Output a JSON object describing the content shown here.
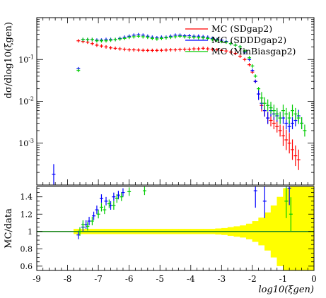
{
  "chart_data": [
    {
      "type": "scatter",
      "panel": "main",
      "ylabel": "dσ/dlog10(ξgen)",
      "yscale": "log",
      "ylim": [
        0.0001,
        1
      ],
      "xlim": [
        -9,
        0
      ],
      "yticks": [
        {
          "value": 0.1,
          "label": "10^-1"
        },
        {
          "value": 0.01,
          "label": "10^-2"
        },
        {
          "value": 0.001,
          "label": "10^-3"
        }
      ],
      "legend_placement": "top-right",
      "series": [
        {
          "name": "MC (SDgap2)",
          "color": "#ff0000",
          "points": [
            [
              -7.65,
              0.28
            ],
            [
              -7.5,
              0.27
            ],
            [
              -7.35,
              0.26
            ],
            [
              -7.2,
              0.24
            ],
            [
              -7.05,
              0.22
            ],
            [
              -6.9,
              0.21
            ],
            [
              -6.75,
              0.2
            ],
            [
              -6.6,
              0.19
            ],
            [
              -6.45,
              0.185
            ],
            [
              -6.3,
              0.18
            ],
            [
              -6.15,
              0.175
            ],
            [
              -6.0,
              0.17
            ],
            [
              -5.85,
              0.17
            ],
            [
              -5.7,
              0.168
            ],
            [
              -5.55,
              0.166
            ],
            [
              -5.4,
              0.165
            ],
            [
              -5.25,
              0.165
            ],
            [
              -5.1,
              0.165
            ],
            [
              -4.95,
              0.166
            ],
            [
              -4.8,
              0.168
            ],
            [
              -4.65,
              0.17
            ],
            [
              -4.5,
              0.17
            ],
            [
              -4.35,
              0.172
            ],
            [
              -4.2,
              0.175
            ],
            [
              -4.05,
              0.175
            ],
            [
              -3.9,
              0.18
            ],
            [
              -3.75,
              0.18
            ],
            [
              -3.6,
              0.185
            ],
            [
              -3.45,
              0.18
            ],
            [
              -3.3,
              0.175
            ],
            [
              -3.15,
              0.17
            ],
            [
              -3.0,
              0.165
            ],
            [
              -2.85,
              0.16
            ],
            [
              -2.7,
              0.15
            ],
            [
              -2.55,
              0.14
            ],
            [
              -2.4,
              0.12
            ],
            [
              -2.25,
              0.1
            ],
            [
              -2.1,
              0.075
            ],
            [
              -2.0,
              0.05
            ],
            [
              -1.9,
              0.03
            ],
            [
              -1.8,
              0.015
            ],
            [
              -1.7,
              0.008
            ],
            [
              -1.6,
              0.006
            ],
            [
              -1.5,
              0.004
            ],
            [
              -1.4,
              0.0035
            ],
            [
              -1.3,
              0.003
            ],
            [
              -1.2,
              0.0025
            ],
            [
              -1.1,
              0.002
            ],
            [
              -1.0,
              0.0015
            ],
            [
              -0.9,
              0.0012
            ],
            [
              -0.8,
              0.001
            ],
            [
              -0.7,
              0.0007
            ],
            [
              -0.6,
              0.0005
            ],
            [
              -0.5,
              0.0004
            ]
          ]
        },
        {
          "name": "MC (SDDDgap2)",
          "color": "#0000ff",
          "points": [
            [
              -7.65,
              0.06
            ],
            [
              -7.5,
              0.3
            ],
            [
              -7.35,
              0.3
            ],
            [
              -7.2,
              0.3
            ],
            [
              -7.05,
              0.29
            ],
            [
              -6.9,
              0.29
            ],
            [
              -6.75,
              0.3
            ],
            [
              -6.6,
              0.3
            ],
            [
              -6.45,
              0.3
            ],
            [
              -6.3,
              0.32
            ],
            [
              -6.15,
              0.34
            ],
            [
              -6.0,
              0.36
            ],
            [
              -5.85,
              0.38
            ],
            [
              -5.7,
              0.39
            ],
            [
              -5.55,
              0.38
            ],
            [
              -5.4,
              0.36
            ],
            [
              -5.25,
              0.34
            ],
            [
              -5.1,
              0.33
            ],
            [
              -4.95,
              0.34
            ],
            [
              -4.8,
              0.34
            ],
            [
              -4.65,
              0.36
            ],
            [
              -4.5,
              0.38
            ],
            [
              -4.35,
              0.38
            ],
            [
              -4.2,
              0.37
            ],
            [
              -4.05,
              0.37
            ],
            [
              -3.9,
              0.36
            ],
            [
              -3.75,
              0.36
            ],
            [
              -3.6,
              0.35
            ],
            [
              -3.45,
              0.34
            ],
            [
              -3.3,
              0.32
            ],
            [
              -3.15,
              0.3
            ],
            [
              -3.0,
              0.29
            ],
            [
              -2.85,
              0.27
            ],
            [
              -2.7,
              0.24
            ],
            [
              -2.55,
              0.22
            ],
            [
              -2.4,
              0.2
            ],
            [
              -2.25,
              0.15
            ],
            [
              -2.1,
              0.1
            ],
            [
              -2.0,
              0.055
            ],
            [
              -1.9,
              0.03
            ],
            [
              -1.8,
              0.015
            ],
            [
              -1.7,
              0.009
            ],
            [
              -1.6,
              0.006
            ],
            [
              -1.5,
              0.004
            ],
            [
              -1.4,
              0.006
            ],
            [
              -1.3,
              0.005
            ],
            [
              -1.2,
              0.0045
            ],
            [
              -1.1,
              0.004
            ],
            [
              -1.0,
              0.004
            ],
            [
              -0.9,
              0.003
            ],
            [
              -0.8,
              0.0025
            ],
            [
              -0.7,
              0.003
            ],
            [
              -0.6,
              0.0035
            ],
            [
              -0.5,
              0.0045
            ],
            [
              -0.4,
              0.003
            ],
            [
              -8.45,
              0.00018
            ]
          ]
        },
        {
          "name": "MC (MinBiasgap2)",
          "color": "#00cc00",
          "points": [
            [
              -7.65,
              0.055
            ],
            [
              -7.5,
              0.3
            ],
            [
              -7.35,
              0.3
            ],
            [
              -7.2,
              0.3
            ],
            [
              -7.05,
              0.28
            ],
            [
              -6.9,
              0.28
            ],
            [
              -6.75,
              0.28
            ],
            [
              -6.6,
              0.29
            ],
            [
              -6.45,
              0.3
            ],
            [
              -6.3,
              0.31
            ],
            [
              -6.15,
              0.32
            ],
            [
              -6.0,
              0.34
            ],
            [
              -5.85,
              0.35
            ],
            [
              -5.7,
              0.36
            ],
            [
              -5.55,
              0.35
            ],
            [
              -5.4,
              0.34
            ],
            [
              -5.25,
              0.32
            ],
            [
              -5.1,
              0.31
            ],
            [
              -4.95,
              0.32
            ],
            [
              -4.8,
              0.33
            ],
            [
              -4.65,
              0.34
            ],
            [
              -4.5,
              0.35
            ],
            [
              -4.35,
              0.36
            ],
            [
              -4.2,
              0.35
            ],
            [
              -4.05,
              0.34
            ],
            [
              -3.9,
              0.34
            ],
            [
              -3.75,
              0.33
            ],
            [
              -3.6,
              0.33
            ],
            [
              -3.45,
              0.32
            ],
            [
              -3.3,
              0.3
            ],
            [
              -3.15,
              0.29
            ],
            [
              -3.0,
              0.27
            ],
            [
              -2.85,
              0.26
            ],
            [
              -2.7,
              0.24
            ],
            [
              -2.55,
              0.22
            ],
            [
              -2.4,
              0.2
            ],
            [
              -2.25,
              0.16
            ],
            [
              -2.1,
              0.11
            ],
            [
              -2.0,
              0.07
            ],
            [
              -1.9,
              0.04
            ],
            [
              -1.8,
              0.02
            ],
            [
              -1.7,
              0.012
            ],
            [
              -1.6,
              0.009
            ],
            [
              -1.5,
              0.008
            ],
            [
              -1.4,
              0.007
            ],
            [
              -1.3,
              0.006
            ],
            [
              -1.2,
              0.005
            ],
            [
              -1.1,
              0.004
            ],
            [
              -1.0,
              0.006
            ],
            [
              -0.9,
              0.005
            ],
            [
              -0.8,
              0.004
            ],
            [
              -0.7,
              0.006
            ],
            [
              -0.6,
              0.005
            ],
            [
              -0.5,
              0.004
            ],
            [
              -0.4,
              0.003
            ],
            [
              -0.3,
              0.002
            ]
          ]
        }
      ]
    },
    {
      "type": "scatter",
      "panel": "ratio",
      "xlabel": "log10(ξgen)",
      "ylabel": "MC/data",
      "xlim": [
        -9,
        0
      ],
      "ylim": [
        0.55,
        1.52
      ],
      "xticks": [
        -9,
        -8,
        -7,
        -6,
        -5,
        -4,
        -3,
        -2,
        -1,
        0
      ],
      "yticks": [
        0.6,
        0.8,
        1,
        1.2,
        1.4
      ],
      "reference_line": 1,
      "data_uncertainty_band": {
        "color": "#ffff00",
        "x": [
          -7.7,
          -7.5,
          -7.3,
          -7.1,
          -6.9,
          -6.7,
          -6.5,
          -6.3,
          -6.1,
          -5.9,
          -5.7,
          -5.5,
          -5.3,
          -5.1,
          -4.9,
          -4.7,
          -4.5,
          -4.3,
          -4.1,
          -3.9,
          -3.7,
          -3.5,
          -3.3,
          -3.1,
          -2.9,
          -2.7,
          -2.5,
          -2.3,
          -2.1,
          -1.9,
          -1.7,
          -1.5,
          -1.3,
          -1.1,
          -0.9,
          -0.7,
          -0.5,
          -0.3,
          -0.1
        ],
        "halfwidth": [
          0.03,
          0.03,
          0.03,
          0.03,
          0.03,
          0.03,
          0.03,
          0.03,
          0.03,
          0.03,
          0.03,
          0.03,
          0.03,
          0.03,
          0.03,
          0.03,
          0.03,
          0.03,
          0.03,
          0.03,
          0.03,
          0.03,
          0.03,
          0.035,
          0.04,
          0.05,
          0.06,
          0.07,
          0.09,
          0.12,
          0.16,
          0.22,
          0.3,
          0.4,
          0.5,
          0.6,
          0.6,
          0.6,
          0.6
        ]
      },
      "series": [
        {
          "name": "MC (SDgap2)",
          "color": "#ff0000",
          "points": []
        },
        {
          "name": "MC (SDDDgap2)",
          "color": "#0000ff",
          "points": [
            [
              -7.65,
              0.96
            ],
            [
              -7.5,
              1.05
            ],
            [
              -7.4,
              1.08
            ],
            [
              -7.3,
              1.12
            ],
            [
              -7.15,
              1.18
            ],
            [
              -7.05,
              1.25
            ],
            [
              -6.9,
              1.38
            ],
            [
              -6.75,
              1.35
            ],
            [
              -6.6,
              1.3
            ],
            [
              -6.5,
              1.4
            ],
            [
              -6.35,
              1.42
            ],
            [
              -6.2,
              1.45
            ],
            [
              -1.9,
              1.47
            ],
            [
              -1.6,
              1.35
            ],
            [
              -0.8,
              1.5
            ]
          ]
        },
        {
          "name": "MC (MinBiasgap2)",
          "color": "#00cc00",
          "points": [
            [
              -7.6,
              1.0
            ],
            [
              -7.5,
              1.08
            ],
            [
              -7.35,
              1.06
            ],
            [
              -7.2,
              1.12
            ],
            [
              -7.0,
              1.2
            ],
            [
              -6.9,
              1.28
            ],
            [
              -6.8,
              1.25
            ],
            [
              -6.65,
              1.32
            ],
            [
              -6.5,
              1.3
            ],
            [
              -6.4,
              1.38
            ],
            [
              -6.25,
              1.4
            ],
            [
              -6.0,
              1.46
            ],
            [
              -5.5,
              1.47
            ],
            [
              -0.9,
              1.35
            ],
            [
              -0.75,
              1.2
            ]
          ]
        }
      ]
    }
  ]
}
